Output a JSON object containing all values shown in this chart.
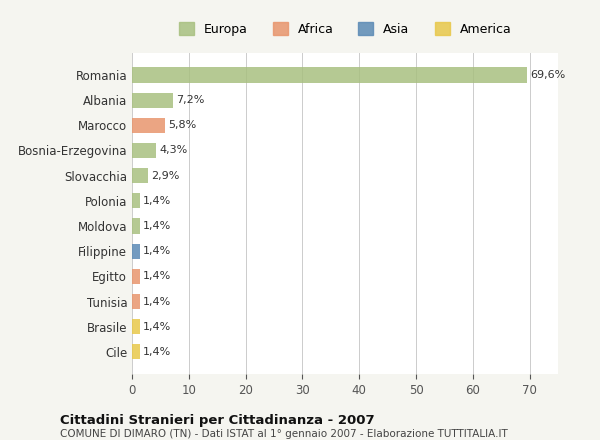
{
  "countries": [
    "Romania",
    "Albania",
    "Marocco",
    "Bosnia-Erzegovina",
    "Slovacchia",
    "Polonia",
    "Moldova",
    "Filippine",
    "Egitto",
    "Tunisia",
    "Brasile",
    "Cile"
  ],
  "values": [
    69.6,
    7.2,
    5.8,
    4.3,
    2.9,
    1.4,
    1.4,
    1.4,
    1.4,
    1.4,
    1.4,
    1.4
  ],
  "labels": [
    "69,6%",
    "7,2%",
    "5,8%",
    "4,3%",
    "2,9%",
    "1,4%",
    "1,4%",
    "1,4%",
    "1,4%",
    "1,4%",
    "1,4%",
    "1,4%"
  ],
  "colors": [
    "#a8c080",
    "#a8c080",
    "#e8956d",
    "#a8c080",
    "#a8c080",
    "#a8c080",
    "#a8c080",
    "#5b8ab5",
    "#e8956d",
    "#e8956d",
    "#e8c84a",
    "#e8c84a"
  ],
  "legend_labels": [
    "Europa",
    "Africa",
    "Asia",
    "America"
  ],
  "legend_colors": [
    "#a8c080",
    "#e8956d",
    "#5b8ab5",
    "#e8c84a"
  ],
  "title": "Cittadini Stranieri per Cittadinanza - 2007",
  "subtitle": "COMUNE DI DIMARO (TN) - Dati ISTAT al 1° gennaio 2007 - Elaborazione TUTTITALIA.IT",
  "xlim": [
    0,
    75
  ],
  "xticks": [
    0,
    10,
    20,
    30,
    40,
    50,
    60,
    70
  ],
  "bg_color": "#f5f5f0",
  "bar_bg_color": "#ffffff"
}
